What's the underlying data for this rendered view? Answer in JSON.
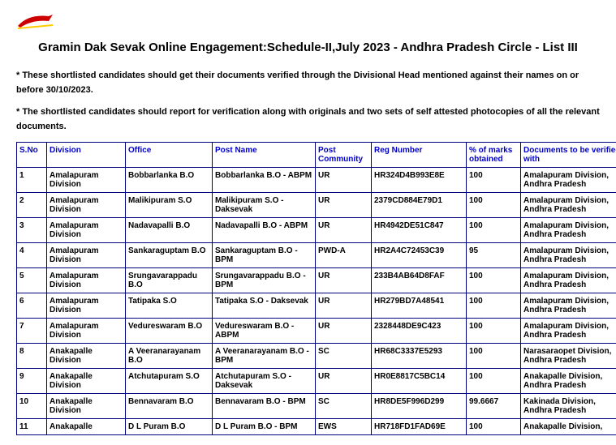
{
  "header": {
    "logo_alt": "India Post",
    "title": "Gramin Dak Sevak Online Engagement:Schedule-II,July 2023 - Andhra Pradesh Circle - List III"
  },
  "notes": {
    "note1": "* These shortlisted candidates should get their documents verified through the Divisional Head mentioned against their names on or before 30/10/2023.",
    "note2": "* The shortlisted candidates should report for verification along with originals and two sets of self attested photocopies of all the relevant documents."
  },
  "table": {
    "headers": {
      "sno": "S.No",
      "division": "Division",
      "office": "Office",
      "post_name": "Post Name",
      "community": "Post Community",
      "reg_number": "Reg Number",
      "marks": "% of marks obtained",
      "docs": "Documents to be verified with"
    },
    "rows": [
      {
        "sno": "1",
        "division": "Amalapuram Division",
        "office": "Bobbarlanka B.O",
        "post_name": "Bobbarlanka B.O - ABPM",
        "community": "UR",
        "reg_number": "HR324D4B993E8E",
        "marks": "100",
        "docs": "Amalapuram Division, Andhra Pradesh"
      },
      {
        "sno": "2",
        "division": "Amalapuram Division",
        "office": "Malikipuram S.O",
        "post_name": "Malikipuram S.O - Daksevak",
        "community": "UR",
        "reg_number": "2379CD884E79D1",
        "marks": "100",
        "docs": "Amalapuram Division, Andhra Pradesh"
      },
      {
        "sno": "3",
        "division": "Amalapuram Division",
        "office": "Nadavapalli B.O",
        "post_name": "Nadavapalli B.O - ABPM",
        "community": "UR",
        "reg_number": "HR4942DE51C847",
        "marks": "100",
        "docs": "Amalapuram Division, Andhra Pradesh"
      },
      {
        "sno": "4",
        "division": "Amalapuram Division",
        "office": "Sankaraguptam B.O",
        "post_name": "Sankaraguptam B.O - BPM",
        "community": "PWD-A",
        "reg_number": "HR2A4C72453C39",
        "marks": "95",
        "docs": "Amalapuram Division, Andhra Pradesh"
      },
      {
        "sno": "5",
        "division": "Amalapuram Division",
        "office": "Srungavarappadu B.O",
        "post_name": "Srungavarappadu B.O - BPM",
        "community": "UR",
        "reg_number": "233B4AB64D8FAF",
        "marks": "100",
        "docs": "Amalapuram Division, Andhra Pradesh"
      },
      {
        "sno": "6",
        "division": "Amalapuram Division",
        "office": "Tatipaka S.O",
        "post_name": "Tatipaka S.O - Daksevak",
        "community": "UR",
        "reg_number": "HR279BD7A48541",
        "marks": "100",
        "docs": "Amalapuram Division, Andhra Pradesh"
      },
      {
        "sno": "7",
        "division": "Amalapuram Division",
        "office": "Vedureswaram B.O",
        "post_name": "Vedureswaram B.O - ABPM",
        "community": "UR",
        "reg_number": "2328448DE9C423",
        "marks": "100",
        "docs": "Amalapuram Division, Andhra Pradesh"
      },
      {
        "sno": "8",
        "division": "Anakapalle Division",
        "office": "A Veeranarayanam B.O",
        "post_name": "A Veeranarayanam B.O - BPM",
        "community": "SC",
        "reg_number": "HR68C3337E5293",
        "marks": "100",
        "docs": "Narasaraopet Division, Andhra Pradesh"
      },
      {
        "sno": "9",
        "division": "Anakapalle Division",
        "office": "Atchutapuram S.O",
        "post_name": "Atchutapuram S.O - Daksevak",
        "community": "UR",
        "reg_number": "HR0E8817C5BC14",
        "marks": "100",
        "docs": "Anakapalle Division, Andhra Pradesh"
      },
      {
        "sno": "10",
        "division": "Anakapalle Division",
        "office": "Bennavaram B.O",
        "post_name": "Bennavaram B.O - BPM",
        "community": "SC",
        "reg_number": "HR8DE5F996D299",
        "marks": "99.6667",
        "docs": "Kakinada Division, Andhra Pradesh"
      },
      {
        "sno": "11",
        "division": "Anakapalle",
        "office": "D L Puram B.O",
        "post_name": "D L Puram B.O - BPM",
        "community": "EWS",
        "reg_number": "HR718FD1FAD69E",
        "marks": "100",
        "docs": "Anakapalle Division,"
      }
    ]
  }
}
